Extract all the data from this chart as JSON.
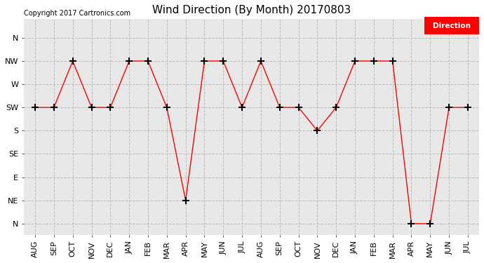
{
  "title": "Wind Direction (By Month) 20170803",
  "copyright": "Copyright 2017 Cartronics.com",
  "legend_label": "Direction",
  "legend_bg": "#ff0000",
  "legend_text_color": "#ffffff",
  "x_labels": [
    "AUG",
    "SEP",
    "OCT",
    "NOV",
    "DEC",
    "JAN",
    "FEB",
    "MAR",
    "APR",
    "MAY",
    "JUN",
    "JUL",
    "AUG",
    "SEP",
    "OCT",
    "NOV",
    "DEC",
    "JAN",
    "FEB",
    "MAR",
    "APR",
    "MAY",
    "JUN",
    "JUL"
  ],
  "y_tick_vals": [
    8,
    7,
    6,
    5,
    4,
    3,
    2,
    1,
    0
  ],
  "y_tick_labels": [
    "N",
    "NW",
    "W",
    "SW",
    "S",
    "SE",
    "E",
    "NE",
    "N"
  ],
  "y_numeric": [
    5,
    5,
    7,
    5,
    5,
    7,
    7,
    5,
    1,
    7,
    7,
    5,
    7,
    5,
    5,
    4,
    5,
    7,
    7,
    7,
    0,
    0,
    5,
    5
  ],
  "line_color": "#ff0000",
  "marker": "+",
  "marker_color": "#000000",
  "marker_size": 7,
  "marker_edge_width": 1.5,
  "bg_color": "#ffffff",
  "plot_bg": "#e8e8e8",
  "grid_color": "#bbbbbb",
  "grid_style": "--",
  "title_fontsize": 11,
  "tick_fontsize": 8,
  "copyright_fontsize": 7,
  "ylim_min": -0.5,
  "ylim_max": 8.8
}
